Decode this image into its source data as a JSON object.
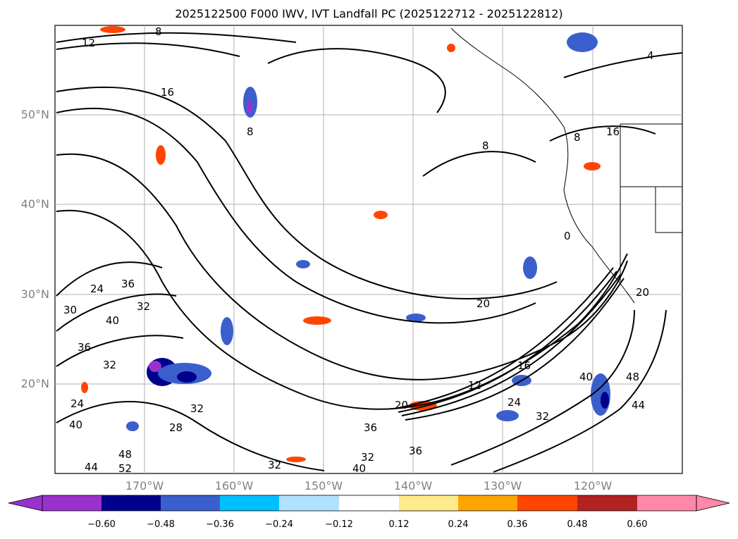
{
  "title": "2025122500 F000 IWV, IVT Landfall PC (2025122712 - 2025122812)",
  "lat_labels": [
    "50°N",
    "40°N",
    "30°N",
    "20°N"
  ],
  "lon_labels": [
    "170°W",
    "160°W",
    "150°W",
    "140°W",
    "130°W",
    "120°W"
  ],
  "colorbar": {
    "ticks": [
      "−0.60",
      "−0.48",
      "−0.36",
      "−0.24",
      "−0.12",
      "0.12",
      "0.24",
      "0.36",
      "0.48",
      "0.60"
    ],
    "colors": [
      "#9932cc",
      "#00008b",
      "#3a5fcd",
      "#00bfff",
      "#b0e2ff",
      "#ffffff",
      "#ffeb8c",
      "#ffa500",
      "#ff4500",
      "#b22222",
      "#ff88aa"
    ]
  },
  "contour_labels": [
    "8",
    "12",
    "16",
    "8",
    "4",
    "8",
    "16",
    "24",
    "36",
    "32",
    "40",
    "30",
    "36",
    "32",
    "24",
    "32",
    "40",
    "44",
    "48",
    "52",
    "28",
    "32",
    "36",
    "40",
    "32",
    "36",
    "20",
    "12",
    "16",
    "20",
    "24",
    "32",
    "40",
    "48",
    "44",
    "20",
    "0",
    "8"
  ],
  "colors": {
    "contour": "#000000",
    "neg_strong": "#00008b",
    "neg_mid": "#3a5fcd",
    "neg_light": "#00bfff",
    "pos_mid": "#ffa500",
    "pos_strong": "#ff4500",
    "coast": "#000000",
    "grid": "#b0b0b0"
  }
}
